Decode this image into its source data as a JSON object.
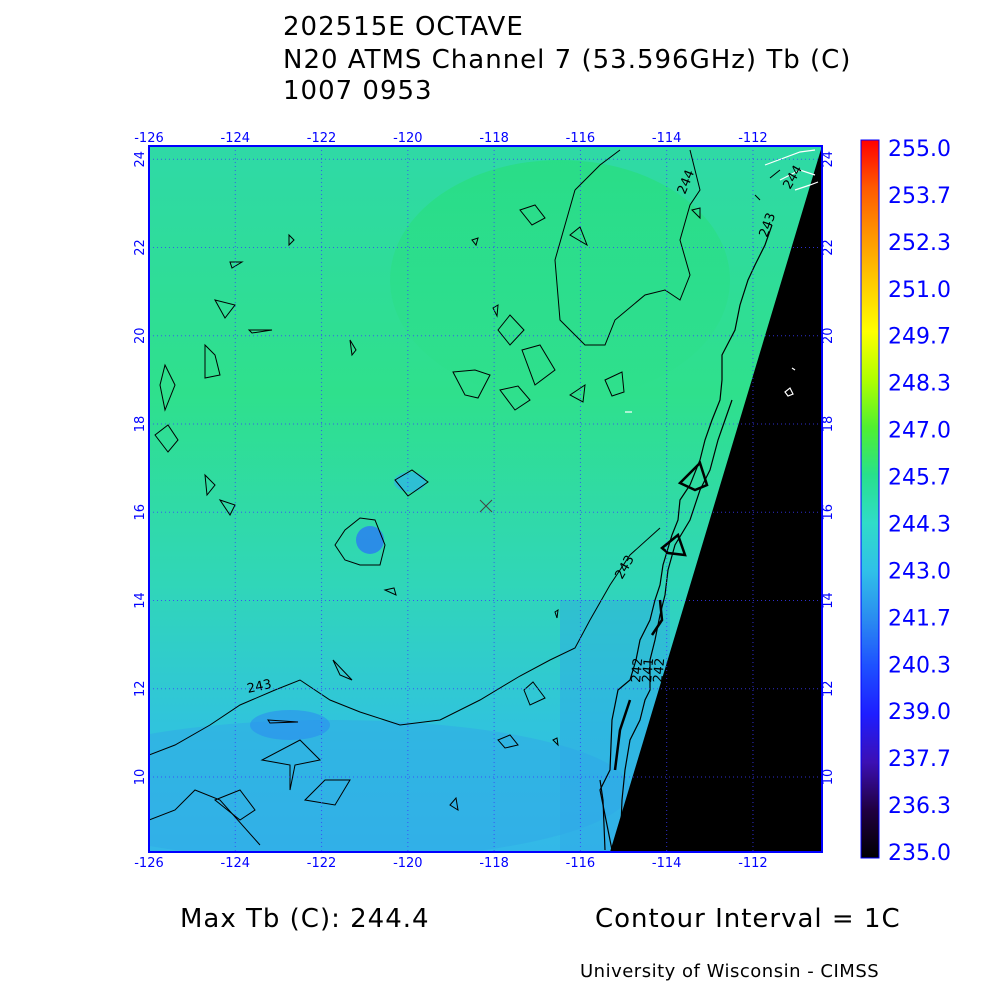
{
  "header": {
    "storm": "202515E OCTAVE",
    "sensor": "N20 ATMS Channel 7 (53.596GHz) Tb (C)",
    "datetime": "1007 0953"
  },
  "map": {
    "lon_ticks": [
      "-126",
      "-124",
      "-122",
      "-120",
      "-118",
      "-116",
      "-114",
      "-112"
    ],
    "lat_ticks": [
      "10",
      "12",
      "14",
      "16",
      "18",
      "20",
      "22",
      "24"
    ],
    "lon_range": [
      -126,
      -110.4
    ],
    "lat_range": [
      8.3,
      24.3
    ],
    "contour_labels": [
      "243",
      "243",
      "244",
      "243",
      "244",
      "242",
      "241",
      "242"
    ],
    "storm_center_marker": "x-mark",
    "colors": {
      "frame": "#0000ff",
      "gridlines": "#3a3aff",
      "land_mask": "#000000",
      "contours": "#000000",
      "field_north": "#2de08c",
      "field_south": "#2fb8e6"
    }
  },
  "colorbar": {
    "labels": [
      "255.0",
      "253.7",
      "252.3",
      "251.0",
      "249.7",
      "248.3",
      "247.0",
      "245.7",
      "244.3",
      "243.0",
      "241.7",
      "240.3",
      "239.0",
      "237.7",
      "236.3",
      "235.0"
    ],
    "colors": [
      "#ff0000",
      "#ff5a00",
      "#ff9600",
      "#ffcc00",
      "#ffff00",
      "#b0ff00",
      "#50f030",
      "#28e08c",
      "#30dcc8",
      "#30c0e8",
      "#2a8cf0",
      "#1e50ff",
      "#1e1eff",
      "#3c10b4",
      "#200040",
      "#000000"
    ]
  },
  "footer": {
    "max_tb": "Max Tb (C): 244.4",
    "contour_interval": "Contour Interval = 1C",
    "credit": "University of Wisconsin - CIMSS"
  }
}
